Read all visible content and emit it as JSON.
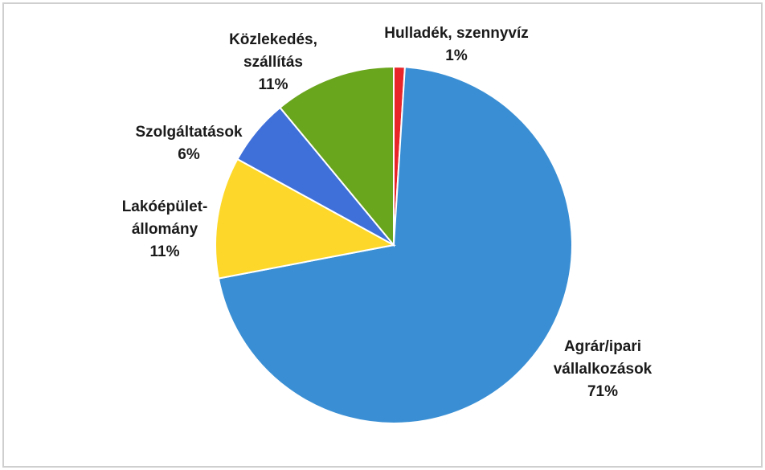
{
  "chart_data": {
    "type": "pie",
    "categories": [
      [
        "Hulladék, szennyvíz"
      ],
      [
        "Agrár/ipari",
        "vállalkozások"
      ],
      [
        "Lakóépület-",
        "állomány"
      ],
      [
        "Szolgáltatások"
      ],
      [
        "Közlekedés,",
        "szállítás"
      ]
    ],
    "values": [
      1,
      71,
      11,
      6,
      11
    ],
    "value_labels": [
      "1%",
      "71%",
      "11%",
      "6%",
      "11%"
    ],
    "colors": [
      "#e8262a",
      "#3a8fd4",
      "#fdd82a",
      "#3f6fd9",
      "#6aa51e"
    ]
  }
}
